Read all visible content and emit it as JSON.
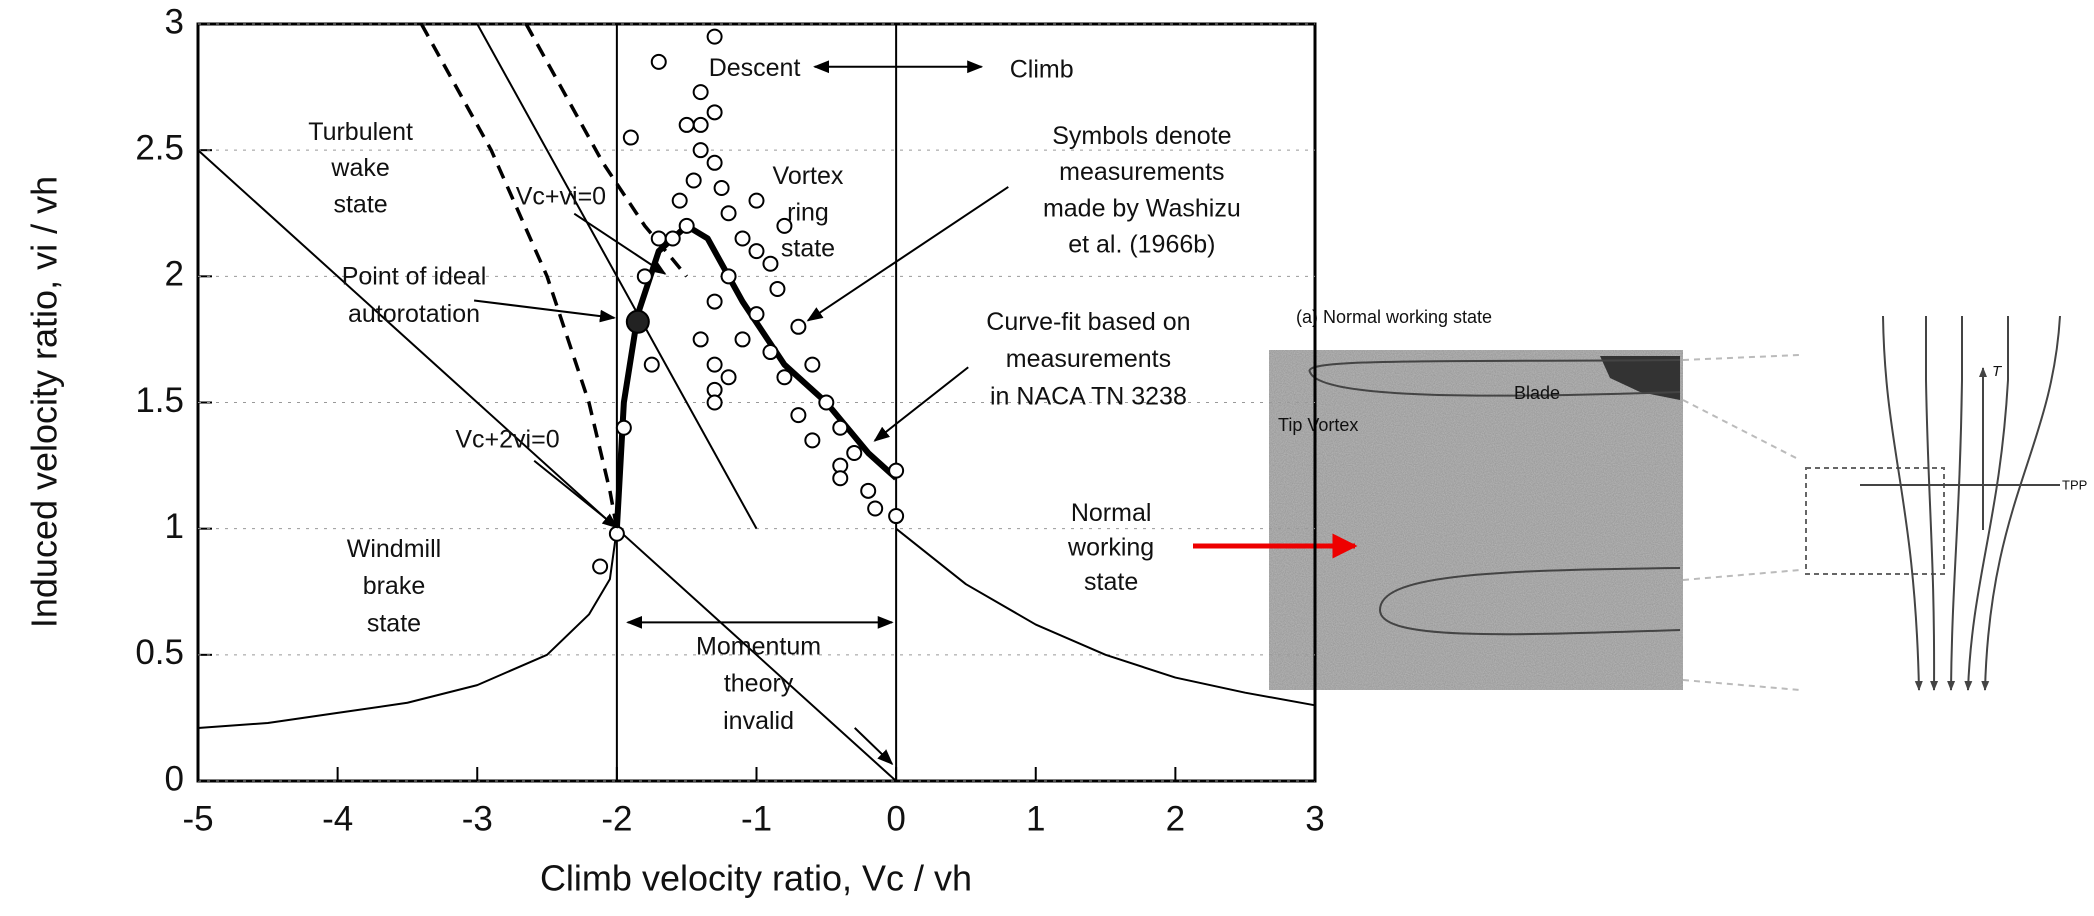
{
  "chart_data": {
    "type": "line",
    "xlabel": "Climb velocity ratio, Vc / vh",
    "ylabel": "Induced velocity ratio, vi / vh",
    "xlim": [
      -5,
      3
    ],
    "ylim": [
      0,
      3
    ],
    "xticks": [
      -5,
      -4,
      -3,
      -2,
      -1,
      0,
      1,
      2,
      3
    ],
    "yticks": [
      0,
      0.5,
      1,
      1.5,
      2,
      2.5,
      3
    ],
    "series": [
      {
        "type": "line",
        "style": "thin",
        "color": "#000000",
        "x": [
          0,
          0.5,
          1,
          1.5,
          2,
          2.5,
          3
        ],
        "values": [
          1,
          0.78,
          0.62,
          0.5,
          0.41,
          0.35,
          0.3
        ]
      },
      {
        "type": "line",
        "style": "thin",
        "color": "#000000",
        "x": [
          -5,
          -4.5,
          -4,
          -3.5,
          -3,
          -2.5,
          -2.2,
          -2.05,
          -2
        ],
        "values": [
          0.21,
          0.23,
          0.27,
          0.31,
          0.38,
          0.5,
          0.66,
          0.8,
          1.0
        ]
      },
      {
        "type": "line",
        "style": "thin",
        "color": "#000000",
        "x": [
          -5,
          0
        ],
        "values": [
          2.5,
          0
        ]
      },
      {
        "type": "line",
        "style": "thin",
        "color": "#000000",
        "x": [
          -3,
          -1
        ],
        "values": [
          3,
          1
        ]
      },
      {
        "type": "line",
        "style": "thin",
        "color": "#000000",
        "x": [
          -2,
          -2
        ],
        "values": [
          0,
          3
        ]
      },
      {
        "type": "line",
        "style": "thin",
        "color": "#000000",
        "x": [
          0,
          0
        ],
        "values": [
          0,
          3
        ]
      },
      {
        "type": "line",
        "style": "dashed",
        "color": "#000000",
        "x": [
          -3.4,
          -2.9,
          -2.5,
          -2.2,
          -2.05,
          -2
        ],
        "values": [
          3,
          2.5,
          2.0,
          1.5,
          1.15,
          1.0
        ]
      },
      {
        "type": "line",
        "style": "dashed",
        "color": "#000000",
        "x": [
          -2.65,
          -2.4,
          -2.1,
          -1.8,
          -1.5
        ],
        "values": [
          3,
          2.75,
          2.45,
          2.2,
          2.0
        ]
      },
      {
        "type": "line",
        "style": "thick",
        "color": "#000000",
        "x": [
          -2,
          -1.95,
          -1.85,
          -1.7,
          -1.5,
          -1.35,
          -1.1,
          -0.8,
          -0.5,
          -0.2,
          0
        ],
        "values": [
          1.0,
          1.5,
          1.85,
          2.1,
          2.2,
          2.15,
          1.9,
          1.65,
          1.5,
          1.3,
          1.2
        ]
      },
      {
        "type": "scatter",
        "marker": "open",
        "color": "#000000",
        "x": [
          -1.3,
          -1.7,
          -1.4,
          -1.4,
          -1.3,
          -1.5,
          -1.9,
          -1.4,
          -1.3,
          -1.45,
          -1.25,
          -1.0,
          -1.55,
          -1.2,
          -1.5,
          -0.8,
          -1.1,
          -1.0,
          -0.9,
          -1.2,
          -0.85,
          -1.3,
          -1.0,
          -0.7,
          -1.4,
          -1.1,
          -0.9,
          -1.3,
          -0.6,
          -1.2,
          -0.8,
          -1.3,
          -0.5,
          -0.7,
          -1.3,
          -0.4,
          -0.6,
          -0.3,
          -0.4,
          -0.4,
          -0.2,
          -0.15,
          0,
          0,
          -1.95,
          -1.75,
          -2.0,
          -2.12,
          -1.8,
          -1.7,
          -1.6
        ],
        "values": [
          2.95,
          2.85,
          2.73,
          2.6,
          2.65,
          2.6,
          2.55,
          2.5,
          2.45,
          2.38,
          2.35,
          2.3,
          2.3,
          2.25,
          2.2,
          2.2,
          2.15,
          2.1,
          2.05,
          2.0,
          1.95,
          1.9,
          1.85,
          1.8,
          1.75,
          1.75,
          1.7,
          1.65,
          1.65,
          1.6,
          1.6,
          1.55,
          1.5,
          1.45,
          1.5,
          1.4,
          1.35,
          1.3,
          1.25,
          1.2,
          1.15,
          1.08,
          1.23,
          1.05,
          1.4,
          1.65,
          0.98,
          0.85,
          2.0,
          2.15,
          2.15
        ]
      },
      {
        "type": "scatter",
        "marker": "filled",
        "color": "#000000",
        "x": [
          -1.85
        ],
        "values": [
          1.82
        ]
      }
    ],
    "annotations": [
      {
        "lines": [
          "Descent"
        ]
      },
      {
        "lines": [
          "Climb"
        ]
      },
      {
        "lines": [
          "Turbulent",
          "wake",
          "state"
        ]
      },
      {
        "lines": [
          "Vc+vi=0"
        ]
      },
      {
        "lines": [
          "Point of ideal",
          "autorotation"
        ]
      },
      {
        "lines": [
          "Symbols denote",
          "measurements",
          "made by Washizu",
          "et al. (1966b)"
        ]
      },
      {
        "lines": [
          "Vortex",
          "ring",
          "state"
        ]
      },
      {
        "lines": [
          "Curve-fit based on",
          "measurements",
          "in NACA TN 3238"
        ]
      },
      {
        "lines": [
          "Vc+2vi=0"
        ]
      },
      {
        "lines": [
          "Windmill",
          "brake",
          "state"
        ]
      },
      {
        "lines": [
          "Normal",
          "working",
          "state"
        ]
      },
      {
        "lines": [
          "Momentum",
          "theory",
          "invalid"
        ]
      }
    ]
  },
  "photo": {
    "caption": "(a) Normal working state",
    "blade": "Blade",
    "vortex": "Tip Vortex"
  },
  "diagram": {
    "thrust": "T",
    "plane": "TPP"
  }
}
